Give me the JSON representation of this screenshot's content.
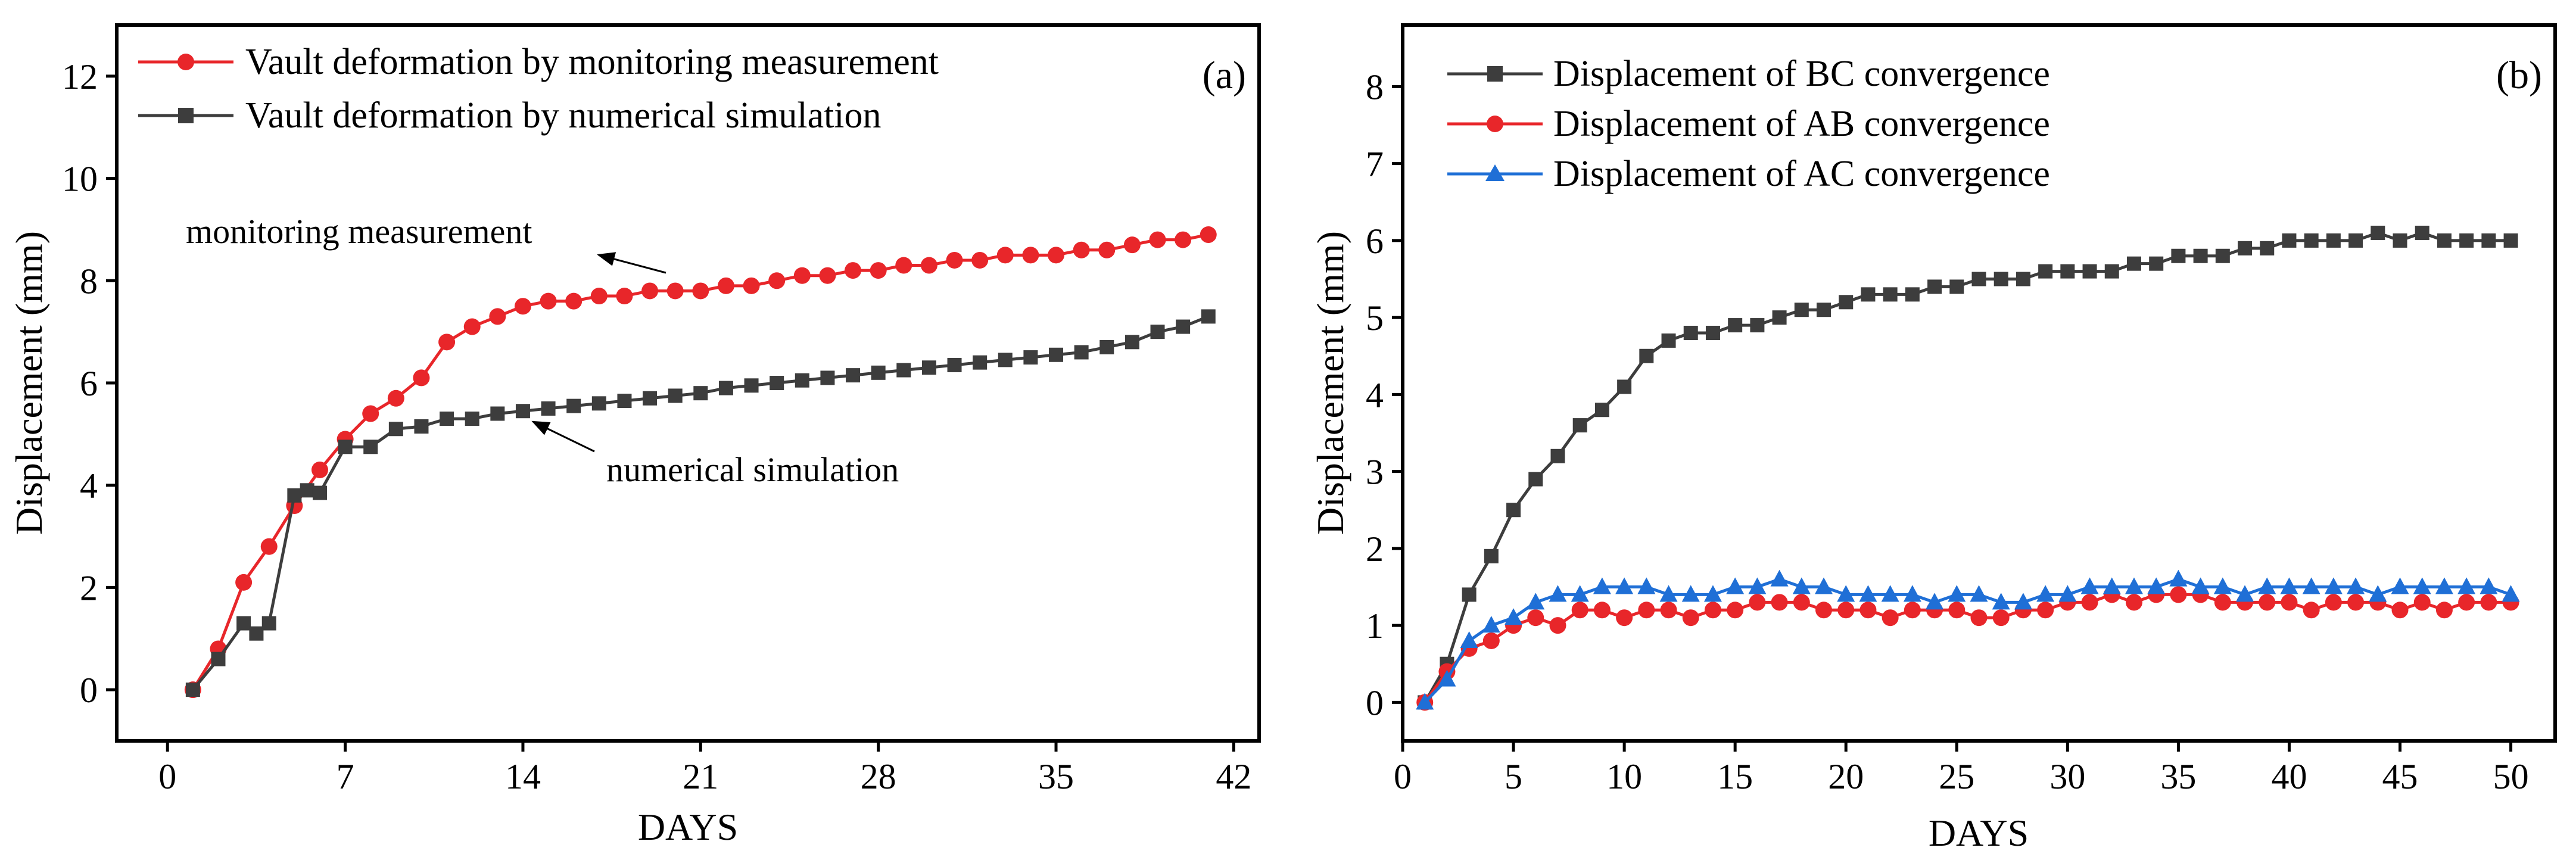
{
  "chart_data": [
    {
      "type": "line",
      "panel_label": "(a)",
      "xlabel": "DAYS",
      "ylabel": "Displacement (mm)",
      "xlim": [
        -2,
        43
      ],
      "ylim": [
        -1,
        13
      ],
      "xticks": [
        0,
        7,
        14,
        21,
        28,
        35,
        42
      ],
      "yticks": [
        0,
        2,
        4,
        6,
        8,
        10,
        12
      ],
      "grid": false,
      "legend_position": "top-left",
      "series": [
        {
          "name": "Vault deformation by monitoring measurement",
          "color": "#e8262a",
          "marker": "circle",
          "x": [
            1,
            2,
            3,
            4,
            5,
            6,
            7,
            8,
            9,
            10,
            11,
            12,
            13,
            14,
            15,
            16,
            17,
            18,
            19,
            20,
            21,
            22,
            23,
            24,
            25,
            26,
            27,
            28,
            29,
            30,
            31,
            32,
            33,
            34,
            35,
            36,
            37,
            38,
            39,
            40,
            41
          ],
          "y": [
            0,
            0.8,
            2.1,
            2.8,
            3.6,
            4.3,
            4.9,
            5.4,
            5.7,
            6.1,
            6.8,
            7.1,
            7.3,
            7.5,
            7.6,
            7.6,
            7.7,
            7.7,
            7.8,
            7.8,
            7.8,
            7.9,
            7.9,
            8.0,
            8.1,
            8.1,
            8.2,
            8.2,
            8.3,
            8.3,
            8.4,
            8.4,
            8.5,
            8.5,
            8.5,
            8.6,
            8.6,
            8.7,
            8.8,
            8.8,
            8.9
          ]
        },
        {
          "name": "Vault deformation by numerical simulation",
          "color": "#3d3d3d",
          "marker": "square",
          "x": [
            1,
            2,
            3,
            3.5,
            4,
            5,
            5.5,
            6,
            7,
            8,
            9,
            10,
            11,
            12,
            13,
            14,
            15,
            16,
            17,
            18,
            19,
            20,
            21,
            22,
            23,
            24,
            25,
            26,
            27,
            28,
            29,
            30,
            31,
            32,
            33,
            34,
            35,
            36,
            37,
            38,
            39,
            40,
            41
          ],
          "y": [
            0,
            0.6,
            1.3,
            1.1,
            1.3,
            3.8,
            3.9,
            3.85,
            4.75,
            4.75,
            5.1,
            5.15,
            5.3,
            5.3,
            5.4,
            5.45,
            5.5,
            5.55,
            5.6,
            5.65,
            5.7,
            5.75,
            5.8,
            5.9,
            5.95,
            6.0,
            6.05,
            6.1,
            6.15,
            6.2,
            6.25,
            6.3,
            6.35,
            6.4,
            6.45,
            6.5,
            6.55,
            6.6,
            6.7,
            6.8,
            7.0,
            7.1,
            7.3
          ]
        }
      ],
      "annotations": [
        {
          "text": "monitoring measurement",
          "target_day": 14.5,
          "target_value": 8.2
        },
        {
          "text": "numerical simulation",
          "target_day": 14.5,
          "target_value": 5.4
        }
      ]
    },
    {
      "type": "line",
      "panel_label": "(b)",
      "xlabel": "DAYS",
      "ylabel": "Displacement (mm)",
      "xlim": [
        0,
        52
      ],
      "ylim": [
        -0.5,
        8.8
      ],
      "xticks": [
        0,
        5,
        10,
        15,
        20,
        25,
        30,
        35,
        40,
        45,
        50
      ],
      "yticks": [
        0,
        1,
        2,
        3,
        4,
        5,
        6,
        7,
        8
      ],
      "grid": false,
      "legend_position": "top-left",
      "series": [
        {
          "name": "Displacement of BC convergence",
          "color": "#3d3d3d",
          "marker": "square",
          "x": [
            1,
            2,
            3,
            4,
            5,
            6,
            7,
            8,
            9,
            10,
            11,
            12,
            13,
            14,
            15,
            16,
            17,
            18,
            19,
            20,
            21,
            22,
            23,
            24,
            25,
            26,
            27,
            28,
            29,
            30,
            31,
            32,
            33,
            34,
            35,
            36,
            37,
            38,
            39,
            40,
            41,
            42,
            43,
            44,
            45,
            46,
            47,
            48,
            49,
            50
          ],
          "y": [
            0,
            0.5,
            1.4,
            1.9,
            2.5,
            2.9,
            3.2,
            3.6,
            3.8,
            4.1,
            4.5,
            4.7,
            4.8,
            4.8,
            4.9,
            4.9,
            5.0,
            5.1,
            5.1,
            5.2,
            5.3,
            5.3,
            5.3,
            5.4,
            5.4,
            5.5,
            5.5,
            5.5,
            5.6,
            5.6,
            5.6,
            5.6,
            5.7,
            5.7,
            5.8,
            5.8,
            5.8,
            5.9,
            5.9,
            6.0,
            6.0,
            6.0,
            6.0,
            6.1,
            6.0,
            6.1,
            6.0,
            6.0,
            6.0,
            6.0
          ]
        },
        {
          "name": "Displacement of AB convergence",
          "color": "#e8262a",
          "marker": "circle",
          "x": [
            1,
            2,
            3,
            4,
            5,
            6,
            7,
            8,
            9,
            10,
            11,
            12,
            13,
            14,
            15,
            16,
            17,
            18,
            19,
            20,
            21,
            22,
            23,
            24,
            25,
            26,
            27,
            28,
            29,
            30,
            31,
            32,
            33,
            34,
            35,
            36,
            37,
            38,
            39,
            40,
            41,
            42,
            43,
            44,
            45,
            46,
            47,
            48,
            49,
            50
          ],
          "y": [
            0,
            0.4,
            0.7,
            0.8,
            1.0,
            1.1,
            1.0,
            1.2,
            1.2,
            1.1,
            1.2,
            1.2,
            1.1,
            1.2,
            1.2,
            1.3,
            1.3,
            1.3,
            1.2,
            1.2,
            1.2,
            1.1,
            1.2,
            1.2,
            1.2,
            1.1,
            1.1,
            1.2,
            1.2,
            1.3,
            1.3,
            1.4,
            1.3,
            1.4,
            1.4,
            1.4,
            1.3,
            1.3,
            1.3,
            1.3,
            1.2,
            1.3,
            1.3,
            1.3,
            1.2,
            1.3,
            1.2,
            1.3,
            1.3,
            1.3
          ]
        },
        {
          "name": "Displacement of AC convergence",
          "color": "#1f6fd6",
          "marker": "triangle",
          "x": [
            1,
            2,
            3,
            4,
            5,
            6,
            7,
            8,
            9,
            10,
            11,
            12,
            13,
            14,
            15,
            16,
            17,
            18,
            19,
            20,
            21,
            22,
            23,
            24,
            25,
            26,
            27,
            28,
            29,
            30,
            31,
            32,
            33,
            34,
            35,
            36,
            37,
            38,
            39,
            40,
            41,
            42,
            43,
            44,
            45,
            46,
            47,
            48,
            49,
            50
          ],
          "y": [
            0,
            0.3,
            0.8,
            1.0,
            1.1,
            1.3,
            1.4,
            1.4,
            1.5,
            1.5,
            1.5,
            1.4,
            1.4,
            1.4,
            1.5,
            1.5,
            1.6,
            1.5,
            1.5,
            1.4,
            1.4,
            1.4,
            1.4,
            1.3,
            1.4,
            1.4,
            1.3,
            1.3,
            1.4,
            1.4,
            1.5,
            1.5,
            1.5,
            1.5,
            1.6,
            1.5,
            1.5,
            1.4,
            1.5,
            1.5,
            1.5,
            1.5,
            1.5,
            1.4,
            1.5,
            1.5,
            1.5,
            1.5,
            1.5,
            1.4
          ]
        }
      ]
    }
  ]
}
